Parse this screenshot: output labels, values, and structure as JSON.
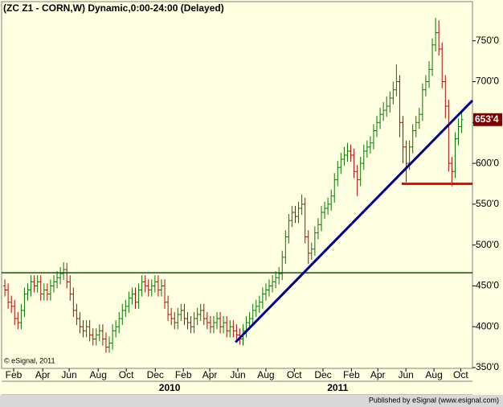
{
  "chart_data": {
    "type": "ohlc",
    "title": "(ZC Z1 - CORN,W) Dynamic,0:00-24:00 (Delayed)",
    "copyright": "© eSignal, 2011",
    "footer": "Published by eSignal (www.esignal.com)",
    "up_color": "#007800",
    "down_color": "#c00000",
    "xlim": [
      -1,
      143.3
    ],
    "ylim": [
      349,
      798
    ],
    "yticks": [
      {
        "value": 350,
        "label": "350'0"
      },
      {
        "value": 400,
        "label": "400'0"
      },
      {
        "value": 450,
        "label": "450'0"
      },
      {
        "value": 500,
        "label": "500'0"
      },
      {
        "value": 550,
        "label": "550'0"
      },
      {
        "value": 600,
        "label": "600'0"
      },
      {
        "value": 650,
        "label": "650'0"
      },
      {
        "value": 700,
        "label": "700'0"
      },
      {
        "value": 750,
        "label": "750'0"
      }
    ],
    "xticks": [
      {
        "value": 2.7,
        "label": "Feb"
      },
      {
        "value": 11.6,
        "label": "Apr"
      },
      {
        "value": 19.7,
        "label": "Jun"
      },
      {
        "value": 28.6,
        "label": "Aug"
      },
      {
        "value": 37.2,
        "label": "Oct"
      },
      {
        "value": 46.1,
        "label": "Dec"
      },
      {
        "value": 54.7,
        "label": "Feb"
      },
      {
        "value": 62.8,
        "label": "Apr"
      },
      {
        "value": 71.4,
        "label": "Jun"
      },
      {
        "value": 80,
        "label": "Aug"
      },
      {
        "value": 88.7,
        "label": "Oct"
      },
      {
        "value": 97.5,
        "label": "Dec"
      },
      {
        "value": 106.2,
        "label": "Feb"
      },
      {
        "value": 114.3,
        "label": "Apr"
      },
      {
        "value": 122.9,
        "label": "Jun"
      },
      {
        "value": 131.5,
        "label": "Aug"
      },
      {
        "value": 139.7,
        "label": "Oct"
      }
    ],
    "year_labels": [
      {
        "value": 50.5,
        "label": "2010"
      },
      {
        "value": 102,
        "label": "2011"
      }
    ],
    "last_price": {
      "value": 653.5,
      "label": "653'4",
      "color": "#800000"
    },
    "lines": [
      {
        "color": "#005a00",
        "x": [
          -1,
          143.3
        ],
        "y": [
          466,
          466
        ]
      },
      {
        "color": "#000090",
        "x": [
          70.7,
          143.3
        ],
        "y": [
          381,
          677
        ]
      },
      {
        "color": "#ff0000",
        "x": [
          121.6,
          143.3
        ],
        "y": [
          575,
          575
        ]
      }
    ],
    "open": [
      450,
      445,
      430,
      425,
      410,
      405,
      420,
      440,
      445,
      455,
      450,
      455,
      440,
      445,
      440,
      450,
      455,
      460,
      465,
      470,
      455,
      440,
      420,
      410,
      400,
      395,
      400,
      390,
      385,
      390,
      395,
      385,
      375,
      380,
      395,
      400,
      410,
      420,
      425,
      435,
      440,
      430,
      445,
      455,
      450,
      445,
      450,
      455,
      445,
      450,
      430,
      415,
      410,
      405,
      415,
      420,
      410,
      405,
      400,
      410,
      415,
      420,
      410,
      405,
      400,
      405,
      410,
      400,
      405,
      395,
      400,
      395,
      390,
      385,
      395,
      405,
      410,
      420,
      425,
      430,
      440,
      445,
      450,
      455,
      460,
      465,
      485,
      510,
      530,
      540,
      535,
      545,
      550,
      510,
      490,
      495,
      515,
      525,
      540,
      545,
      550,
      560,
      580,
      595,
      605,
      610,
      615,
      610,
      590,
      580,
      600,
      615,
      620,
      625,
      640,
      650,
      660,
      665,
      670,
      680,
      690,
      700,
      650,
      620,
      600,
      620,
      640,
      650,
      660,
      690,
      700,
      715,
      745,
      760,
      740,
      700,
      670,
      600,
      590,
      630,
      645
    ],
    "high": [
      458,
      453,
      438,
      433,
      418,
      428,
      448,
      453,
      463,
      463,
      463,
      463,
      453,
      453,
      458,
      463,
      468,
      473,
      479,
      478,
      463,
      448,
      428,
      418,
      408,
      408,
      408,
      398,
      398,
      403,
      403,
      393,
      388,
      403,
      408,
      418,
      428,
      433,
      443,
      448,
      448,
      453,
      463,
      463,
      458,
      458,
      463,
      463,
      458,
      458,
      438,
      423,
      418,
      423,
      428,
      428,
      418,
      413,
      418,
      423,
      428,
      428,
      418,
      413,
      413,
      418,
      418,
      413,
      413,
      408,
      408,
      403,
      398,
      403,
      413,
      418,
      428,
      433,
      438,
      448,
      453,
      458,
      463,
      468,
      473,
      493,
      518,
      538,
      548,
      548,
      553,
      562,
      558,
      518,
      503,
      523,
      533,
      548,
      553,
      558,
      568,
      588,
      603,
      613,
      620,
      625,
      623,
      618,
      598,
      608,
      623,
      628,
      633,
      648,
      658,
      668,
      675,
      682,
      688,
      700,
      721,
      708,
      658,
      628,
      628,
      648,
      658,
      668,
      698,
      708,
      725,
      753,
      778,
      775,
      748,
      708,
      678,
      608,
      638,
      655,
      663
    ],
    "low": [
      437,
      422,
      417,
      402,
      397,
      397,
      412,
      432,
      437,
      442,
      442,
      432,
      432,
      432,
      432,
      442,
      447,
      452,
      457,
      447,
      432,
      412,
      402,
      392,
      387,
      387,
      382,
      377,
      377,
      382,
      377,
      368,
      368,
      372,
      387,
      392,
      402,
      412,
      417,
      427,
      422,
      422,
      437,
      442,
      437,
      437,
      442,
      437,
      437,
      422,
      407,
      402,
      397,
      397,
      407,
      402,
      397,
      392,
      392,
      402,
      407,
      402,
      397,
      392,
      392,
      397,
      392,
      392,
      387,
      387,
      387,
      382,
      378,
      377,
      387,
      397,
      402,
      412,
      417,
      422,
      432,
      437,
      442,
      447,
      452,
      457,
      477,
      502,
      522,
      527,
      527,
      537,
      502,
      477,
      482,
      487,
      507,
      517,
      532,
      537,
      542,
      552,
      572,
      587,
      597,
      602,
      602,
      582,
      560,
      572,
      592,
      607,
      612,
      617,
      632,
      642,
      652,
      657,
      662,
      672,
      682,
      632,
      600,
      577,
      592,
      612,
      632,
      642,
      652,
      682,
      692,
      707,
      737,
      732,
      692,
      655,
      590,
      572,
      582,
      622,
      637
    ],
    "close": [
      445,
      430,
      425,
      410,
      405,
      420,
      440,
      445,
      455,
      450,
      455,
      440,
      445,
      440,
      450,
      455,
      460,
      465,
      470,
      455,
      440,
      420,
      410,
      400,
      395,
      400,
      390,
      385,
      390,
      395,
      385,
      375,
      380,
      395,
      400,
      410,
      420,
      425,
      435,
      440,
      430,
      445,
      455,
      450,
      445,
      450,
      455,
      445,
      450,
      430,
      415,
      410,
      405,
      415,
      420,
      410,
      405,
      400,
      410,
      415,
      420,
      410,
      405,
      400,
      405,
      410,
      400,
      405,
      395,
      400,
      395,
      390,
      385,
      395,
      405,
      410,
      420,
      425,
      430,
      440,
      445,
      450,
      455,
      460,
      465,
      485,
      510,
      530,
      540,
      535,
      545,
      550,
      510,
      490,
      495,
      515,
      525,
      540,
      545,
      550,
      560,
      580,
      595,
      605,
      610,
      615,
      610,
      590,
      580,
      600,
      615,
      620,
      625,
      640,
      650,
      660,
      665,
      670,
      680,
      690,
      700,
      650,
      620,
      600,
      620,
      640,
      650,
      660,
      690,
      700,
      715,
      745,
      760,
      740,
      700,
      670,
      600,
      590,
      630,
      645,
      653.5
    ]
  }
}
